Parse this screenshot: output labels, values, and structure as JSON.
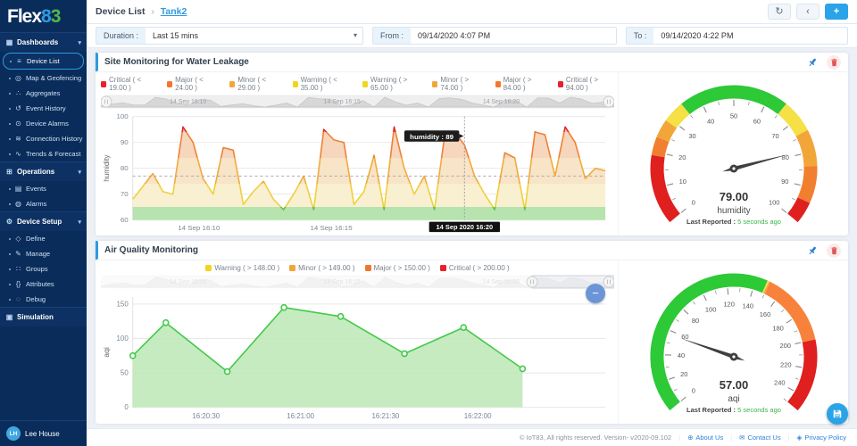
{
  "brand": {
    "name_part1": "Flex",
    "name_part2": "8",
    "name_part3": "3"
  },
  "breadcrumb": {
    "parent": "Device List",
    "current": "Tank2"
  },
  "filters": {
    "duration_label": "Duration :",
    "duration_value": "Last 15 mins",
    "from_label": "From :",
    "from_value": "09/14/2020 4:07 PM",
    "to_label": "To :",
    "to_value": "09/14/2020 4:22 PM"
  },
  "sidebar": {
    "sections": [
      {
        "label": "Dashboards",
        "icon": "dashboard-icon",
        "chevron": true,
        "items": [
          {
            "label": "Device List",
            "icon": "list-icon",
            "active": true
          },
          {
            "label": "Map & Geofencing",
            "icon": "map-pin-icon"
          },
          {
            "label": "Aggregates",
            "icon": "nodes-icon"
          },
          {
            "label": "Event History",
            "icon": "history-icon"
          },
          {
            "label": "Device Alarms",
            "icon": "alarm-icon"
          },
          {
            "label": "Connection History",
            "icon": "wifi-icon"
          },
          {
            "label": "Trends & Forecast",
            "icon": "trend-icon"
          }
        ]
      },
      {
        "label": "Operations",
        "icon": "operations-icon",
        "chevron": true,
        "items": [
          {
            "label": "Events",
            "icon": "document-icon"
          },
          {
            "label": "Alarms",
            "icon": "bell-icon"
          }
        ]
      },
      {
        "label": "Device Setup",
        "icon": "gear-icon",
        "chevron": true,
        "items": [
          {
            "label": "Define",
            "icon": "define-icon"
          },
          {
            "label": "Manage",
            "icon": "edit-icon"
          },
          {
            "label": "Groups",
            "icon": "hierarchy-icon"
          },
          {
            "label": "Attributes",
            "icon": "braces-icon"
          },
          {
            "label": "Debug",
            "icon": "debug-icon"
          }
        ]
      },
      {
        "label": "Simulation",
        "icon": "simulation-icon",
        "chevron": false,
        "items": []
      }
    ]
  },
  "user": {
    "initials": "LH",
    "name": "Lee House"
  },
  "panels": [
    {
      "title": "Site Monitoring for Water Leakage",
      "legend": [
        {
          "label": "Critical ( < 19.00 )",
          "color": "#e8212b"
        },
        {
          "label": "Major ( < 24.00 )",
          "color": "#f2762c"
        },
        {
          "label": "Minor ( < 29.00 )",
          "color": "#f2a63a"
        },
        {
          "label": "Warning ( < 35.00 )",
          "color": "#f3d520"
        },
        {
          "label": "Warning ( > 65.00 )",
          "color": "#f3d520"
        },
        {
          "label": "Minor ( > 74.00 )",
          "color": "#f2a63a"
        },
        {
          "label": "Major ( > 84.00 )",
          "color": "#f2762c"
        },
        {
          "label": "Critical ( > 94.00 )",
          "color": "#e8212b"
        }
      ]
    },
    {
      "title": "Air Quality Monitoring",
      "legend": [
        {
          "label": "Warning ( > 148.00 )",
          "color": "#f3d520"
        },
        {
          "label": "Minor ( > 149.00 )",
          "color": "#f2a63a"
        },
        {
          "label": "Major ( > 150.00 )",
          "color": "#f2762c"
        },
        {
          "label": "Critical ( > 200.00 )",
          "color": "#e8212b"
        }
      ]
    }
  ],
  "chart_data": [
    {
      "type": "area",
      "title": "Site Monitoring for Water Leakage",
      "ylabel": "humidity",
      "ylim": [
        60,
        100
      ],
      "yticks": [
        60,
        70,
        80,
        90,
        100
      ],
      "values": [
        68,
        73,
        78,
        71,
        70,
        96,
        90,
        76,
        70,
        88,
        87,
        66,
        71,
        75,
        68,
        64,
        70,
        77,
        64,
        95,
        91,
        90,
        66,
        71,
        85,
        64,
        96,
        80,
        70,
        77,
        64,
        92,
        94,
        89,
        77,
        70,
        64,
        86,
        84,
        64,
        94,
        93,
        77,
        96,
        90,
        76,
        80,
        79
      ],
      "xticks": [
        {
          "pos": 0.14,
          "label": "14 Sep 16:10"
        },
        {
          "pos": 0.42,
          "label": "14 Sep 16:15"
        }
      ],
      "plot_line": 77,
      "fill_bands": [
        {
          "from": 100,
          "to": 94,
          "color": "#f2c4b8"
        },
        {
          "from": 94,
          "to": 84,
          "color": "#f6d6bd"
        },
        {
          "from": 84,
          "to": 74,
          "color": "#f8e4c6"
        },
        {
          "from": 74,
          "to": 65,
          "color": "#f8f0d0"
        },
        {
          "from": 65,
          "to": 60,
          "color": "#b6e3ae"
        }
      ],
      "line_bands": [
        {
          "from": 100,
          "to": 94,
          "color": "#e02828"
        },
        {
          "from": 94,
          "to": 84,
          "color": "#f08032"
        },
        {
          "from": 84,
          "to": 74,
          "color": "#f2aa3c"
        },
        {
          "from": 74,
          "to": 65,
          "color": "#f0cf3c"
        },
        {
          "from": 65,
          "to": 60,
          "color": "#5cc452"
        }
      ],
      "crosshair": {
        "pos": 0.702,
        "value": 89,
        "tooltip": "humidity : 89",
        "axis_label": "14 Sep 2020 16:20"
      },
      "navigator": {
        "window": [
          0,
          1
        ],
        "faded": false,
        "labels": [
          {
            "pos": 0.17,
            "label": "14 Sep 16:10"
          },
          {
            "pos": 0.47,
            "label": "14 Sep 16:15"
          },
          {
            "pos": 0.78,
            "label": "14 Sep 16:20"
          }
        ]
      }
    },
    {
      "type": "gauge",
      "min": 0,
      "max": 100,
      "value": 79,
      "value_text": "79.00",
      "label": "humidity",
      "last_reported_label": "Last Reported :",
      "last_reported_value": "5 seconds ago",
      "tick_major": 10,
      "tick_minor": 5,
      "segments": [
        {
          "from": 0,
          "to": 19,
          "color": "#e01f1f"
        },
        {
          "from": 19,
          "to": 24,
          "color": "#f07f2f"
        },
        {
          "from": 24,
          "to": 29,
          "color": "#f2a63a"
        },
        {
          "from": 29,
          "to": 35,
          "color": "#f5e045"
        },
        {
          "from": 35,
          "to": 65,
          "color": "#2dc937"
        },
        {
          "from": 65,
          "to": 74,
          "color": "#f5e045"
        },
        {
          "from": 74,
          "to": 84,
          "color": "#f2a63a"
        },
        {
          "from": 84,
          "to": 94,
          "color": "#f07f2f"
        },
        {
          "from": 94,
          "to": 100,
          "color": "#e01f1f"
        }
      ]
    },
    {
      "type": "area",
      "title": "Air Quality Monitoring",
      "ylabel": "aqi",
      "ylim": [
        0,
        160
      ],
      "yticks": [
        0,
        50,
        100,
        150
      ],
      "values": [
        75,
        123,
        52,
        145,
        132,
        78,
        116,
        56
      ],
      "x": [
        0,
        0.07,
        0.2,
        0.32,
        0.44,
        0.575,
        0.7,
        0.825
      ],
      "markers": true,
      "line_color": "#44ca4a",
      "fill_color": "#bce7b6",
      "fill_opacity": 0.85,
      "xticks": [
        {
          "pos": 0.155,
          "label": "16:20:30"
        },
        {
          "pos": 0.355,
          "label": "16:21:00"
        },
        {
          "pos": 0.535,
          "label": "16:21:30"
        },
        {
          "pos": 0.73,
          "label": "16:22:00"
        }
      ],
      "navigator": {
        "window": [
          0.84,
          1
        ],
        "faded": true,
        "labels": [
          {
            "pos": 0.17,
            "label": "14 Sep 16:10"
          },
          {
            "pos": 0.47,
            "label": "14 Sep 16:15"
          },
          {
            "pos": 0.78,
            "label": "14 Sep 16:20"
          }
        ]
      }
    },
    {
      "type": "gauge",
      "min": 0,
      "max": 250,
      "value": 57,
      "value_text": "57.00",
      "label": "aqi",
      "last_reported_label": "Last Reported :",
      "last_reported_value": "5 seconds ago",
      "tick_major": 20,
      "tick_minor": 10,
      "segments": [
        {
          "from": 0,
          "to": 148,
          "color": "#2dc937"
        },
        {
          "from": 148,
          "to": 149,
          "color": "#f5e045"
        },
        {
          "from": 149,
          "to": 150,
          "color": "#f2a63a"
        },
        {
          "from": 150,
          "to": 200,
          "color": "#f8823c"
        },
        {
          "from": 200,
          "to": 250,
          "color": "#e01f1f"
        }
      ]
    }
  ],
  "footer": {
    "copyright": "© IoT83, All rights reserved. Version- v2020-09.102",
    "links": [
      {
        "label": "About Us",
        "icon": "globe-icon"
      },
      {
        "label": "Contact Us",
        "icon": "mail-icon"
      },
      {
        "label": "Privacy Policy",
        "icon": "privacy-icon"
      }
    ]
  }
}
